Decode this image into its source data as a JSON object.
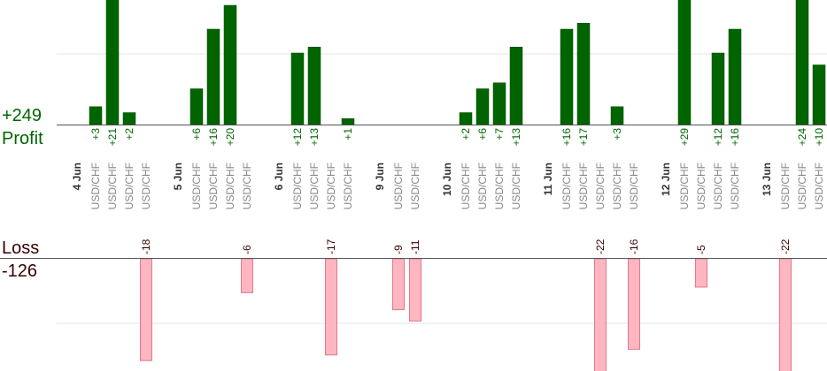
{
  "totals": {
    "profit_value": "+249",
    "profit_label": "Profit",
    "loss_label": "Loss",
    "loss_value": "-126"
  },
  "chart_data": {
    "type": "bar",
    "title": "",
    "xlabel": "",
    "ylabel": "",
    "grid": true,
    "colors": {
      "profit": "#006400",
      "profit_dark": "#004d00",
      "loss_fill": "#ffb6c1",
      "loss_border": "#e07a8a",
      "profit_text": "#006400",
      "loss_text": "#3a0000",
      "label_gray": "#888888",
      "date_text": "#333333",
      "axis": "#555555",
      "grid": "#e6e6e6"
    },
    "days": [
      {
        "date": "4 Jun",
        "trades": [
          {
            "symbol": "USD/CHF",
            "value": 3
          },
          {
            "symbol": "USD/CHF",
            "value": 21
          },
          {
            "symbol": "USD/CHF",
            "value": 2
          },
          {
            "symbol": "USD/CHF",
            "value": -18
          }
        ]
      },
      {
        "date": "5 Jun",
        "trades": [
          {
            "symbol": "USD/CHF",
            "value": 6
          },
          {
            "symbol": "USD/CHF",
            "value": 16
          },
          {
            "symbol": "USD/CHF",
            "value": 20
          },
          {
            "symbol": "USD/CHF",
            "value": -6
          }
        ]
      },
      {
        "date": "6 Jun",
        "trades": [
          {
            "symbol": "USD/CHF",
            "value": 12
          },
          {
            "symbol": "USD/CHF",
            "value": 13
          },
          {
            "symbol": "USD/CHF",
            "value": -17
          },
          {
            "symbol": "USD/CHF",
            "value": 1
          }
        ]
      },
      {
        "date": "9 Jun",
        "trades": [
          {
            "symbol": "USD/CHF",
            "value": -9
          },
          {
            "symbol": "USD/CHF",
            "value": -11
          }
        ]
      },
      {
        "date": "10 Jun",
        "trades": [
          {
            "symbol": "USD/CHF",
            "value": 2
          },
          {
            "symbol": "USD/CHF",
            "value": 6
          },
          {
            "symbol": "USD/CHF",
            "value": 7
          },
          {
            "symbol": "USD/CHF",
            "value": 13
          }
        ]
      },
      {
        "date": "11 Jun",
        "trades": [
          {
            "symbol": "USD/CHF",
            "value": 16
          },
          {
            "symbol": "USD/CHF",
            "value": 17
          },
          {
            "symbol": "USD/CHF",
            "value": -22
          },
          {
            "symbol": "USD/CHF",
            "value": 3
          },
          {
            "symbol": "USD/CHF",
            "value": -16
          }
        ]
      },
      {
        "date": "12 Jun",
        "trades": [
          {
            "symbol": "USD/CHF",
            "value": 29
          },
          {
            "symbol": "USD/CHF",
            "value": -5
          },
          {
            "symbol": "USD/CHF",
            "value": 12
          },
          {
            "symbol": "USD/CHF",
            "value": 16
          }
        ]
      },
      {
        "date": "13 Jun",
        "trades": [
          {
            "symbol": "USD/CHF",
            "value": -22
          },
          {
            "symbol": "USD/CHF",
            "value": 24
          },
          {
            "symbol": "USD/CHF",
            "value": 10
          }
        ]
      }
    ]
  }
}
